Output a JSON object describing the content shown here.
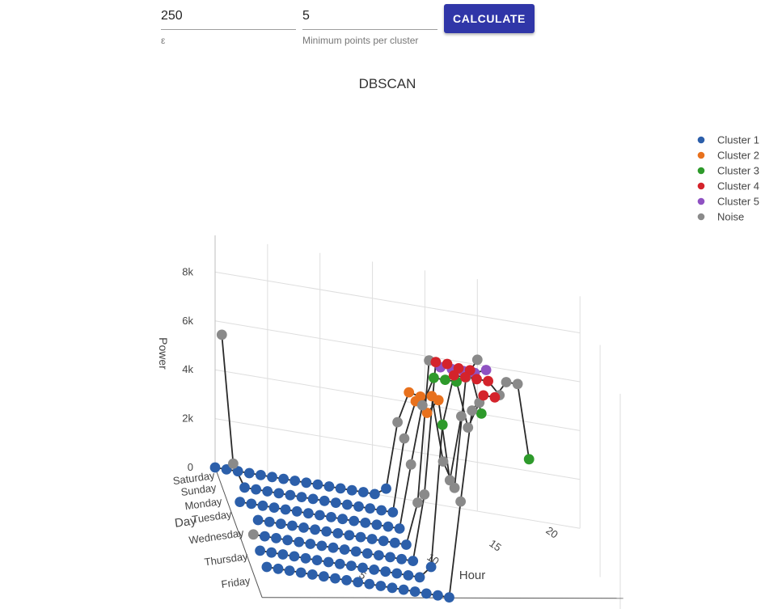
{
  "form": {
    "epsilon_value": "250",
    "epsilon_label": "ε",
    "min_points_value": "5",
    "min_points_label": "Minimum points per cluster",
    "calculate_label": "CALCULATE"
  },
  "chart_data": {
    "type": "scatter3d",
    "title": "DBSCAN",
    "xlabel": "Hour",
    "ylabel": "Day",
    "zlabel": "Power",
    "x_ticks": [
      5,
      10,
      15,
      20
    ],
    "day_ticks": [
      "Saturday",
      "Sunday",
      "Monday",
      "Tuesday",
      "Wednesday",
      "Thursday",
      "Friday"
    ],
    "z_ticks": [
      0,
      2000,
      4000,
      6000,
      8000
    ],
    "z_tick_labels": [
      "0",
      "2k",
      "4k",
      "6k",
      "8k"
    ],
    "zlim": [
      0,
      9500
    ],
    "xlim": [
      0,
      23
    ],
    "legend_position": "top-right",
    "lines_connect_points_per_day": true,
    "series": [
      {
        "name": "Cluster 1",
        "color": "#2c5faa"
      },
      {
        "name": "Cluster 2",
        "color": "#e8711d"
      },
      {
        "name": "Cluster 3",
        "color": "#2e9a2b"
      },
      {
        "name": "Cluster 4",
        "color": "#d4232b"
      },
      {
        "name": "Cluster 5",
        "color": "#8f52c2"
      },
      {
        "name": "Noise",
        "color": "#8a8a8a"
      }
    ],
    "points_by_day": [
      {
        "day": "Saturday",
        "points": [
          [
            0,
            0,
            "Cluster 1"
          ],
          [
            1,
            0,
            "Cluster 1"
          ],
          [
            2,
            0,
            "Cluster 1"
          ],
          [
            3,
            0,
            "Cluster 1"
          ],
          [
            4,
            0,
            "Cluster 1"
          ],
          [
            5,
            0,
            "Cluster 1"
          ],
          [
            6,
            0,
            "Cluster 1"
          ],
          [
            7,
            0,
            "Cluster 1"
          ],
          [
            8,
            0,
            "Cluster 1"
          ],
          [
            9,
            0,
            "Cluster 1"
          ],
          [
            10,
            0,
            "Cluster 1"
          ],
          [
            11,
            0,
            "Cluster 1"
          ],
          [
            12,
            0,
            "Cluster 1"
          ],
          [
            13,
            0,
            "Cluster 1"
          ],
          [
            14,
            0,
            "Cluster 1"
          ],
          [
            15,
            300,
            "Cluster 1"
          ],
          [
            16,
            3100,
            "Noise"
          ],
          [
            17,
            4400,
            "Cluster 2"
          ],
          [
            18,
            4300,
            "Cluster 2"
          ],
          [
            19,
            4400,
            "Cluster 2"
          ],
          [
            20,
            1800,
            "Noise"
          ],
          [
            21,
            800,
            "Noise"
          ],
          [
            22,
            5400,
            "Noise"
          ],
          [
            23,
            6200,
            "Noise"
          ]
        ]
      },
      {
        "day": "Sunday",
        "points": [
          [
            0,
            6100,
            "Noise"
          ],
          [
            1,
            900,
            "Noise"
          ],
          [
            2,
            0,
            "Cluster 1"
          ],
          [
            3,
            0,
            "Cluster 1"
          ],
          [
            4,
            0,
            "Cluster 1"
          ],
          [
            5,
            0,
            "Cluster 1"
          ],
          [
            6,
            0,
            "Cluster 1"
          ],
          [
            7,
            0,
            "Cluster 1"
          ],
          [
            8,
            0,
            "Cluster 1"
          ],
          [
            9,
            0,
            "Cluster 1"
          ],
          [
            10,
            0,
            "Cluster 1"
          ],
          [
            11,
            0,
            "Cluster 1"
          ],
          [
            12,
            0,
            "Cluster 1"
          ],
          [
            13,
            0,
            "Cluster 1"
          ],
          [
            14,
            0,
            "Cluster 1"
          ],
          [
            15,
            0,
            "Cluster 1"
          ],
          [
            16,
            3100,
            "Noise"
          ],
          [
            17,
            4700,
            "Cluster 2"
          ],
          [
            18,
            4300,
            "Cluster 2"
          ],
          [
            19,
            4900,
            "Cluster 2"
          ],
          [
            20,
            1700,
            "Noise"
          ],
          [
            21,
            4400,
            "Noise"
          ]
        ]
      },
      {
        "day": "Monday",
        "points": [
          [
            1,
            0,
            "Cluster 1"
          ],
          [
            2,
            0,
            "Cluster 1"
          ],
          [
            3,
            0,
            "Cluster 1"
          ],
          [
            4,
            0,
            "Cluster 1"
          ],
          [
            5,
            0,
            "Cluster 1"
          ],
          [
            6,
            0,
            "Cluster 1"
          ],
          [
            7,
            0,
            "Cluster 1"
          ],
          [
            8,
            0,
            "Cluster 1"
          ],
          [
            9,
            0,
            "Cluster 1"
          ],
          [
            10,
            0,
            "Cluster 1"
          ],
          [
            11,
            0,
            "Cluster 1"
          ],
          [
            12,
            0,
            "Cluster 1"
          ],
          [
            13,
            0,
            "Cluster 1"
          ],
          [
            14,
            0,
            "Cluster 1"
          ],
          [
            15,
            0,
            "Cluster 1"
          ],
          [
            16,
            2700,
            "Noise"
          ],
          [
            17,
            5200,
            "Noise"
          ],
          [
            18,
            6400,
            "Cluster 3"
          ],
          [
            19,
            6400,
            "Cluster 3"
          ],
          [
            20,
            6400,
            "Cluster 3"
          ],
          [
            21,
            4600,
            "Noise"
          ],
          [
            22,
            5700,
            "Noise"
          ]
        ]
      },
      {
        "day": "Tuesday",
        "points": [
          [
            2,
            0,
            "Cluster 1"
          ],
          [
            3,
            0,
            "Cluster 1"
          ],
          [
            4,
            0,
            "Cluster 1"
          ],
          [
            5,
            0,
            "Cluster 1"
          ],
          [
            6,
            0,
            "Cluster 1"
          ],
          [
            7,
            0,
            "Cluster 1"
          ],
          [
            8,
            0,
            "Cluster 1"
          ],
          [
            9,
            0,
            "Cluster 1"
          ],
          [
            10,
            0,
            "Cluster 1"
          ],
          [
            11,
            0,
            "Cluster 1"
          ],
          [
            12,
            0,
            "Cluster 1"
          ],
          [
            13,
            0,
            "Cluster 1"
          ],
          [
            14,
            0,
            "Cluster 1"
          ],
          [
            15,
            0,
            "Cluster 1"
          ],
          [
            16,
            1800,
            "Noise"
          ],
          [
            17,
            7700,
            "Noise"
          ],
          [
            18,
            7500,
            "Cluster 5"
          ],
          [
            19,
            7500,
            "Cluster 5"
          ],
          [
            20,
            7500,
            "Cluster 5"
          ],
          [
            21,
            7500,
            "Cluster 5"
          ],
          [
            22,
            7700,
            "Cluster 5"
          ]
        ]
      },
      {
        "day": "Wednesday",
        "points": [
          [
            1,
            0,
            "Noise"
          ],
          [
            2,
            0,
            "Cluster 1"
          ],
          [
            3,
            0,
            "Cluster 1"
          ],
          [
            4,
            0,
            "Cluster 1"
          ],
          [
            5,
            0,
            "Cluster 1"
          ],
          [
            6,
            0,
            "Cluster 1"
          ],
          [
            7,
            0,
            "Cluster 1"
          ],
          [
            8,
            0,
            "Cluster 1"
          ],
          [
            9,
            0,
            "Cluster 1"
          ],
          [
            10,
            0,
            "Cluster 1"
          ],
          [
            11,
            0,
            "Cluster 1"
          ],
          [
            12,
            0,
            "Cluster 1"
          ],
          [
            13,
            0,
            "Cluster 1"
          ],
          [
            14,
            0,
            "Cluster 1"
          ],
          [
            15,
            0,
            "Cluster 1"
          ],
          [
            16,
            2800,
            "Noise"
          ],
          [
            17,
            8300,
            "Cluster 4"
          ],
          [
            18,
            8300,
            "Cluster 4"
          ],
          [
            19,
            8200,
            "Cluster 4"
          ],
          [
            20,
            8200,
            "Cluster 4"
          ],
          [
            21,
            6500,
            "Cluster 3"
          ]
        ]
      },
      {
        "day": "Thursday",
        "points": [
          [
            1,
            0,
            "Cluster 1"
          ],
          [
            2,
            0,
            "Cluster 1"
          ],
          [
            3,
            0,
            "Cluster 1"
          ],
          [
            4,
            0,
            "Cluster 1"
          ],
          [
            5,
            0,
            "Cluster 1"
          ],
          [
            6,
            0,
            "Cluster 1"
          ],
          [
            7,
            0,
            "Cluster 1"
          ],
          [
            8,
            0,
            "Cluster 1"
          ],
          [
            9,
            0,
            "Cluster 1"
          ],
          [
            10,
            0,
            "Cluster 1"
          ],
          [
            11,
            0,
            "Cluster 1"
          ],
          [
            12,
            0,
            "Cluster 1"
          ],
          [
            13,
            0,
            "Cluster 1"
          ],
          [
            14,
            0,
            "Cluster 1"
          ],
          [
            15,
            0,
            "Cluster 1"
          ],
          [
            16,
            500,
            "Cluster 1"
          ],
          [
            17,
            6400,
            "Cluster 3"
          ],
          [
            18,
            8500,
            "Cluster 4"
          ],
          [
            19,
            8500,
            "Cluster 4"
          ],
          [
            20,
            8500,
            "Cluster 4"
          ],
          [
            21,
            8500,
            "Cluster 4"
          ],
          [
            22,
            8000,
            "Noise"
          ]
        ]
      },
      {
        "day": "Friday",
        "points": [
          [
            1,
            0,
            "Cluster 1"
          ],
          [
            2,
            0,
            "Cluster 1"
          ],
          [
            3,
            0,
            "Cluster 1"
          ],
          [
            4,
            0,
            "Cluster 1"
          ],
          [
            5,
            0,
            "Cluster 1"
          ],
          [
            6,
            0,
            "Cluster 1"
          ],
          [
            7,
            0,
            "Cluster 1"
          ],
          [
            8,
            0,
            "Cluster 1"
          ],
          [
            9,
            0,
            "Cluster 1"
          ],
          [
            10,
            0,
            "Cluster 1"
          ],
          [
            11,
            0,
            "Cluster 1"
          ],
          [
            12,
            0,
            "Cluster 1"
          ],
          [
            13,
            0,
            "Cluster 1"
          ],
          [
            14,
            0,
            "Cluster 1"
          ],
          [
            15,
            0,
            "Cluster 1"
          ],
          [
            16,
            0,
            "Cluster 1"
          ],
          [
            17,
            0,
            "Cluster 1"
          ],
          [
            18,
            4000,
            "Noise"
          ],
          [
            19,
            7800,
            "Noise"
          ],
          [
            20,
            8500,
            "Cluster 4"
          ],
          [
            21,
            8500,
            "Cluster 4"
          ],
          [
            22,
            9200,
            "Noise"
          ],
          [
            23,
            9200,
            "Noise"
          ],
          [
            24,
            6200,
            "Cluster 3"
          ]
        ]
      }
    ]
  }
}
